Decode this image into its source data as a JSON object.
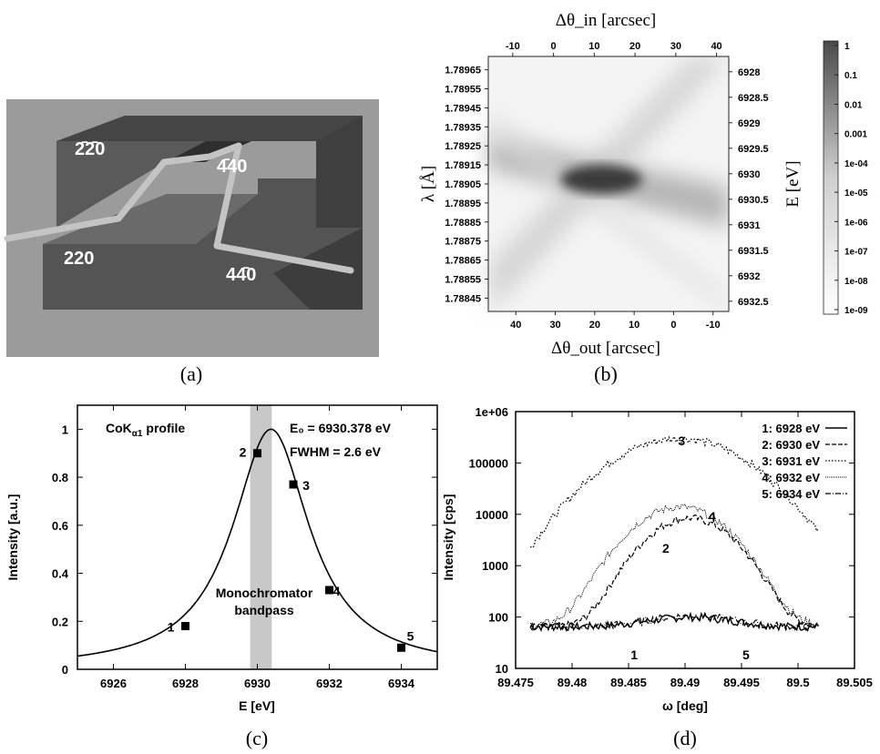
{
  "panels": {
    "a": {
      "label": "(a)",
      "crystal_labels": [
        "2̄2̄0",
        "4̄40",
        "220",
        "44̄0"
      ]
    },
    "b": {
      "label": "(b)"
    },
    "c": {
      "label": "(c)"
    },
    "d": {
      "label": "(d)"
    }
  },
  "chart_data": [
    {
      "panel": "b",
      "type": "heatmap",
      "xlabel_top": "Δθ_in [arcsec]",
      "xlabel_bottom": "Δθ_out [arcsec]",
      "ylabel_left": "λ [Å]",
      "ylabel_right": "E [eV]",
      "x_top_ticks": [
        "-10",
        "0",
        "10",
        "20",
        "30",
        "40"
      ],
      "x_top_range": [
        -16,
        43
      ],
      "x_bottom_ticks": [
        "40",
        "30",
        "20",
        "10",
        "0",
        "-10"
      ],
      "x_bottom_range": [
        47,
        -14
      ],
      "y_left_ticks": [
        "1.78965",
        "1.78955",
        "1.78945",
        "1.78935",
        "1.78925",
        "1.78915",
        "1.78905",
        "1.78895",
        "1.78885",
        "1.78875",
        "1.78865",
        "1.78855",
        "1.78845"
      ],
      "y_left_range": [
        1.78838,
        1.78972
      ],
      "y_right_ticks": [
        "6928",
        "6928.5",
        "6929",
        "6929.5",
        "6930",
        "6930.5",
        "6931",
        "6931.5",
        "6932",
        "6932.5"
      ],
      "y_right_range": [
        6932.7,
        6927.7
      ],
      "colorbar_ticks": [
        "1",
        "0.1",
        "0.01",
        "0.001",
        "1e-04",
        "1e-05",
        "1e-06",
        "1e-07",
        "1e-08",
        "1e-09"
      ],
      "colorbar_scale": "log",
      "grid": false
    },
    {
      "panel": "c",
      "type": "line",
      "xlabel": "E [eV]",
      "ylabel": "Intensity [a.u.]",
      "xlim": [
        6925,
        6935
      ],
      "ylim": [
        0,
        1.1
      ],
      "x_ticks": [
        "6926",
        "6928",
        "6930",
        "6932",
        "6934"
      ],
      "y_ticks": [
        "0",
        "0.2",
        "0.4",
        "0.6",
        "0.8",
        "1"
      ],
      "profile_label": "CoK",
      "profile_subscript": "α1",
      "profile_suffix": " profile",
      "e0_text": "E₀ = 6930.378 eV",
      "fwhm_text": "FWHM = 2.6 eV",
      "band_label_1": "Monochromator",
      "band_label_2": "bandpass",
      "bandpass": [
        6929.8,
        6930.4
      ],
      "profile": {
        "e0": 6930.378,
        "fwhm": 2.6,
        "peak": 1.0
      },
      "points": [
        {
          "label": "1",
          "x": 6928,
          "y": 0.18
        },
        {
          "label": "2",
          "x": 6930,
          "y": 0.9
        },
        {
          "label": "3",
          "x": 6931,
          "y": 0.77
        },
        {
          "label": "4",
          "x": 6932,
          "y": 0.33
        },
        {
          "label": "5",
          "x": 6934,
          "y": 0.09
        }
      ],
      "grid": false
    },
    {
      "panel": "d",
      "type": "line",
      "xlabel": "ω [deg]",
      "ylabel": "Intensity [cps]",
      "xlim": [
        89.475,
        89.505
      ],
      "ylim": [
        10,
        1000000
      ],
      "yscale": "log",
      "x_ticks": [
        "89.475",
        "89.48",
        "89.485",
        "89.49",
        "89.495",
        "89.5",
        "89.505"
      ],
      "y_ticks": [
        "10",
        "100",
        "1000",
        "10000",
        "100000",
        "1e+06"
      ],
      "legend_position": "top-right",
      "series": [
        {
          "name": "1: 6928 eV",
          "label": "1",
          "peak": 100,
          "base": 65,
          "center": 89.4905,
          "width": 0.0035
        },
        {
          "name": "2: 6930 eV",
          "label": "2",
          "peak": 8500,
          "base": 65,
          "center": 89.4904,
          "width": 0.0028
        },
        {
          "name": "3: 6931 eV",
          "label": "3",
          "peak": 300000,
          "base": 200,
          "center": 89.4895,
          "width": 0.0042
        },
        {
          "name": "4: 6932 eV",
          "label": "4",
          "peak": 14000,
          "base": 70,
          "center": 89.4895,
          "width": 0.003
        },
        {
          "name": "5: 6934 eV",
          "label": "5",
          "peak": 105,
          "base": 65,
          "center": 89.4905,
          "width": 0.0035
        }
      ],
      "grid": false
    }
  ]
}
